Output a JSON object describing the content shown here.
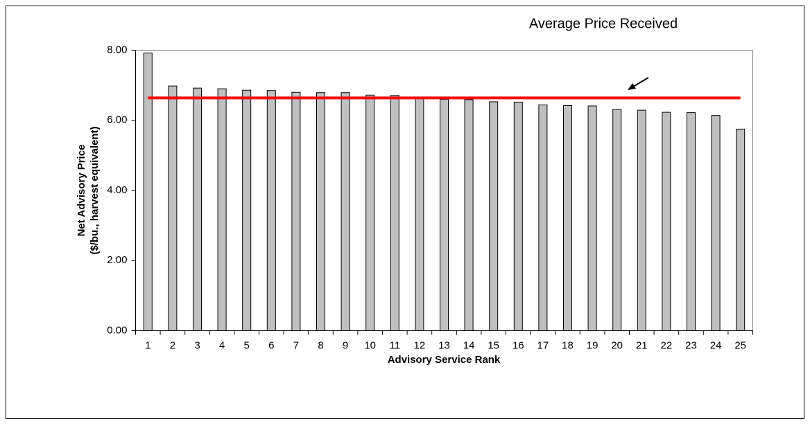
{
  "chart_data": {
    "type": "bar",
    "xlabel": "Advisory Service Rank",
    "ylabel": [
      "Net Advisory Price",
      "($/bu., harvest equivalent)"
    ],
    "categories": [
      "1",
      "2",
      "3",
      "4",
      "5",
      "6",
      "7",
      "8",
      "9",
      "10",
      "11",
      "12",
      "13",
      "14",
      "15",
      "16",
      "17",
      "18",
      "19",
      "20",
      "21",
      "22",
      "23",
      "24",
      "25"
    ],
    "values": [
      7.92,
      6.98,
      6.92,
      6.9,
      6.86,
      6.85,
      6.8,
      6.79,
      6.79,
      6.72,
      6.71,
      6.64,
      6.6,
      6.59,
      6.53,
      6.52,
      6.44,
      6.42,
      6.41,
      6.31,
      6.29,
      6.23,
      6.22,
      6.14,
      5.75
    ],
    "color": "#c0c0c0",
    "ylim": [
      0,
      8
    ],
    "yticks": [
      {
        "value": 0,
        "label": "0.00"
      },
      {
        "value": 2,
        "label": "2.00"
      },
      {
        "value": 4,
        "label": "4.00"
      },
      {
        "value": 6,
        "label": "6.00"
      },
      {
        "value": 8,
        "label": "8.00"
      }
    ],
    "reference_line": {
      "label": "Average Price Received",
      "value": 6.64,
      "color": "#ff0000"
    }
  }
}
